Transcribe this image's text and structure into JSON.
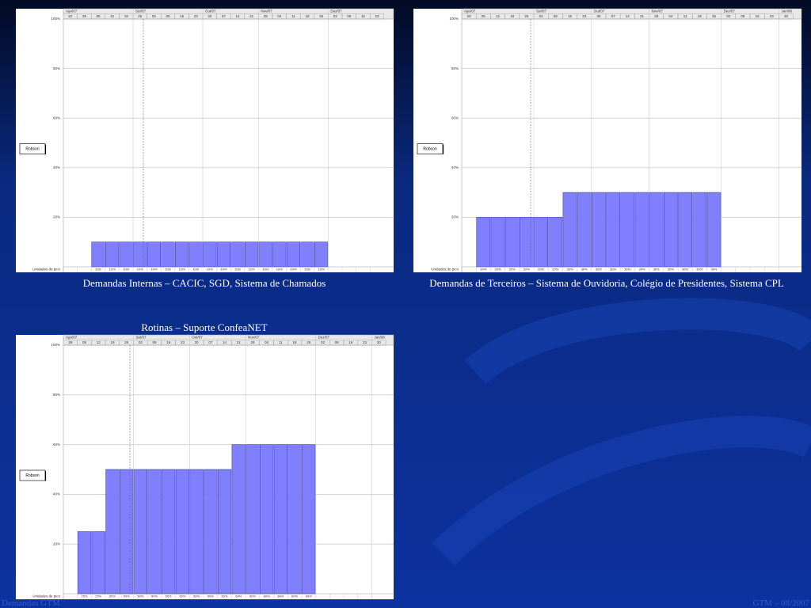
{
  "footer": {
    "left": "Demandas GTM",
    "right": "GTM – 08/2007"
  },
  "chart_data": [
    {
      "type": "bar",
      "caption": "Demandas Internas – CACIC, SGD, Sistema de Chamados",
      "resource": "Robson",
      "row_label": "Unidades de pico",
      "color": "#8080ff",
      "months": [
        "Ago/07",
        null,
        null,
        null,
        null,
        "Set/07",
        null,
        null,
        null,
        null,
        "Out/07",
        null,
        null,
        null,
        "Nov/07",
        null,
        null,
        null,
        null,
        "Dez/07",
        null,
        null,
        null
      ],
      "categories": [
        "22",
        "29",
        "05",
        "12",
        "19",
        "26",
        "02",
        "09",
        "16",
        "23",
        "30",
        "07",
        "14",
        "21",
        "28",
        "04",
        "11",
        "18",
        "25",
        "02",
        "09",
        "16",
        "23"
      ],
      "values": [
        null,
        null,
        10,
        10,
        10,
        10,
        10,
        10,
        10,
        10,
        10,
        10,
        10,
        10,
        10,
        10,
        10,
        10,
        10,
        null,
        null,
        null,
        null
      ],
      "value_labels": [
        null,
        null,
        "10%",
        "10%",
        "10%",
        "10%",
        "10%",
        "10%",
        "10%",
        "10%",
        "10%",
        "10%",
        "10%",
        "10%",
        "10%",
        "10%",
        "10%",
        "10%",
        "10%",
        null,
        null,
        null,
        null
      ],
      "ylim": [
        0,
        100
      ],
      "yticks": [
        {
          "value": 20,
          "label": "20%"
        },
        {
          "value": 40,
          "label": "40%"
        },
        {
          "value": 60,
          "label": "60%"
        },
        {
          "value": 80,
          "label": "80%"
        },
        {
          "value": 100,
          "label": "100%"
        }
      ],
      "grid": true
    },
    {
      "type": "bar",
      "caption": "Demandas de Terceiros – Sistema de Ouvidoria, Colégio de Presidentes, Sistema CPL",
      "resource": "Robson",
      "row_label": "Unidades de pico",
      "color": "#8080ff",
      "months": [
        "Ago/07",
        null,
        null,
        null,
        null,
        "Set/07",
        null,
        null,
        null,
        "Out/07",
        null,
        null,
        null,
        "Nov/07",
        null,
        null,
        null,
        null,
        "Dez/07",
        null,
        null,
        null,
        "Jan/08"
      ],
      "categories": [
        "29",
        "05",
        "12",
        "19",
        "26",
        "02",
        "09",
        "16",
        "23",
        "30",
        "07",
        "14",
        "21",
        "28",
        "04",
        "11",
        "18",
        "25",
        "02",
        "09",
        "16",
        "23",
        "30"
      ],
      "values": [
        null,
        20,
        20,
        20,
        20,
        20,
        20,
        30,
        30,
        30,
        30,
        30,
        30,
        30,
        30,
        30,
        30,
        30,
        null,
        null,
        null,
        null,
        null
      ],
      "value_labels": [
        null,
        "20%",
        "20%",
        "20%",
        "20%",
        "20%",
        "20%",
        "30%",
        "30%",
        "30%",
        "30%",
        "30%",
        "30%",
        "30%",
        "30%",
        "30%",
        "30%",
        "30%",
        null,
        null,
        null,
        null,
        null
      ],
      "ylim": [
        0,
        100
      ],
      "yticks": [
        {
          "value": 20,
          "label": "20%"
        },
        {
          "value": 40,
          "label": "40%"
        },
        {
          "value": 60,
          "label": "60%"
        },
        {
          "value": 80,
          "label": "80%"
        },
        {
          "value": 100,
          "label": "100%"
        }
      ],
      "grid": true
    },
    {
      "type": "bar",
      "title": "Rotinas – Suporte ConfeaNET",
      "resource": "Robson",
      "row_label": "Unidades de pico",
      "color": "#8080ff",
      "months": [
        "Ago/07",
        null,
        null,
        null,
        null,
        "Set/07",
        null,
        null,
        null,
        "Out/07",
        null,
        null,
        null,
        "Nov/07",
        null,
        null,
        null,
        null,
        "Dez/07",
        null,
        null,
        null,
        "Jan/08"
      ],
      "categories": [
        "29",
        "05",
        "12",
        "19",
        "26",
        "02",
        "09",
        "16",
        "23",
        "30",
        "07",
        "14",
        "21",
        "28",
        "04",
        "11",
        "18",
        "25",
        "02",
        "09",
        "16",
        "23",
        "30"
      ],
      "values": [
        null,
        25,
        25,
        50,
        50,
        50,
        50,
        50,
        50,
        50,
        50,
        50,
        60,
        60,
        60,
        60,
        60,
        60,
        null,
        null,
        null,
        null,
        null
      ],
      "value_labels": [
        null,
        "25%",
        "25%",
        "50%",
        "50%",
        "50%",
        "50%",
        "50%",
        "50%",
        "50%",
        "50%",
        "50%",
        "60%",
        "60%",
        "60%",
        "60%",
        "60%",
        "60%",
        null,
        null,
        null,
        null,
        null
      ],
      "ylim": [
        0,
        100
      ],
      "yticks": [
        {
          "value": 20,
          "label": "20%"
        },
        {
          "value": 40,
          "label": "40%"
        },
        {
          "value": 60,
          "label": "60%"
        },
        {
          "value": 80,
          "label": "80%"
        },
        {
          "value": 100,
          "label": "100%"
        }
      ],
      "grid": true
    }
  ]
}
